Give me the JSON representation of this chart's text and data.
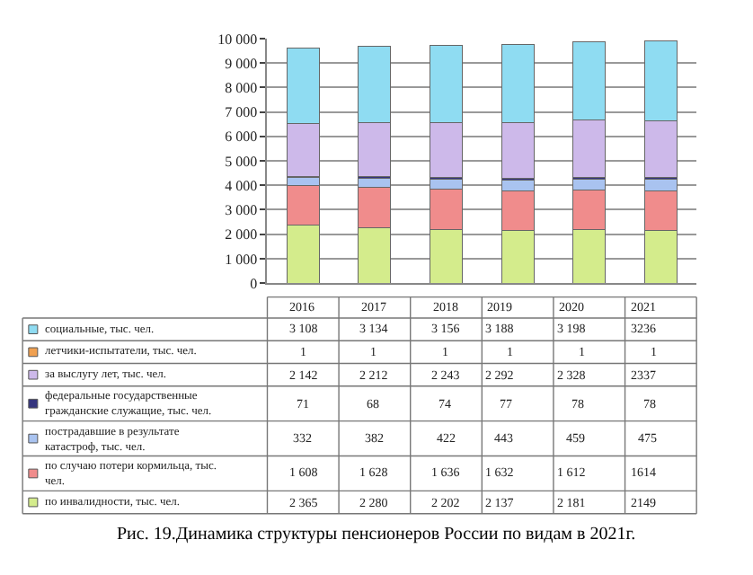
{
  "chart_data": {
    "type": "bar",
    "stacked": true,
    "categories": [
      "2016",
      "2017",
      "2018",
      "2019",
      "2020",
      "2021"
    ],
    "series": [
      {
        "name": "по инвалидности, тыс. чел.",
        "color": "#d4ec8c",
        "values": [
          2365,
          2280,
          2202,
          2137,
          2181,
          2149
        ],
        "value_labels": [
          "2 365",
          "2 280",
          "2 202",
          "2 137",
          "2 181",
          "2149"
        ]
      },
      {
        "name": "по случаю потери кормильца, тыс. чел.",
        "color": "#f08c8c",
        "values": [
          1608,
          1628,
          1636,
          1632,
          1612,
          1614
        ],
        "value_labels": [
          "1 608",
          "1 628",
          "1 636",
          "1 632",
          "1 612",
          "1614"
        ]
      },
      {
        "name": "пострадавшие в результате катастроф, тыс. чел.",
        "color": "#a9c3f0",
        "values": [
          332,
          382,
          422,
          443,
          459,
          475
        ],
        "value_labels": [
          "332",
          "382",
          "422",
          "443",
          "459",
          "475"
        ]
      },
      {
        "name": "федеральные государственные гражданские служащие, тыс. чел.",
        "color": "#34347e",
        "values": [
          71,
          68,
          74,
          77,
          78,
          78
        ],
        "value_labels": [
          "71",
          "68",
          "74",
          "77",
          "78",
          "78"
        ]
      },
      {
        "name": "за выслугу лет, тыс. чел.",
        "color": "#cdb9ea",
        "values": [
          2142,
          2212,
          2243,
          2292,
          2328,
          2337
        ],
        "value_labels": [
          "2 142",
          "2 212",
          "2 243",
          "2 292",
          "2 328",
          "2337"
        ]
      },
      {
        "name": "летчики-испытатели, тыс. чел.",
        "color": "#f0a050",
        "values": [
          1,
          1,
          1,
          1,
          1,
          1
        ],
        "value_labels": [
          "1",
          "1",
          "1",
          "1",
          "1",
          "1"
        ]
      },
      {
        "name": "социальные, тыс. чел.",
        "color": "#8fdcf2",
        "values": [
          3108,
          3134,
          3156,
          3188,
          3198,
          3236
        ],
        "value_labels": [
          "3 108",
          "3 134",
          "3 156",
          "3 188",
          "3 198",
          "3236"
        ]
      }
    ],
    "ylim": [
      0,
      10000
    ],
    "yticks": [
      0,
      {
        "value": 1000,
        "label": "1 000"
      },
      {
        "value": 2000,
        "label": "2 000"
      },
      {
        "value": 3000,
        "label": "3 000"
      },
      {
        "value": 4000,
        "label": "4 000"
      },
      {
        "value": 5000,
        "label": "5 000"
      },
      {
        "value": 6000,
        "label": "6 000"
      },
      {
        "value": 7000,
        "label": "7 000"
      },
      {
        "value": 8000,
        "label": "8 000"
      },
      {
        "value": 9000,
        "label": "9 000"
      },
      {
        "value": 10000,
        "label": "10 000"
      }
    ],
    "grid": "y",
    "legend": "bottom left",
    "tick_labels": "y",
    "annotations": [
      "Рис. 19.Динамика структуры пенсионеров России по видам в 2021г."
    ]
  }
}
